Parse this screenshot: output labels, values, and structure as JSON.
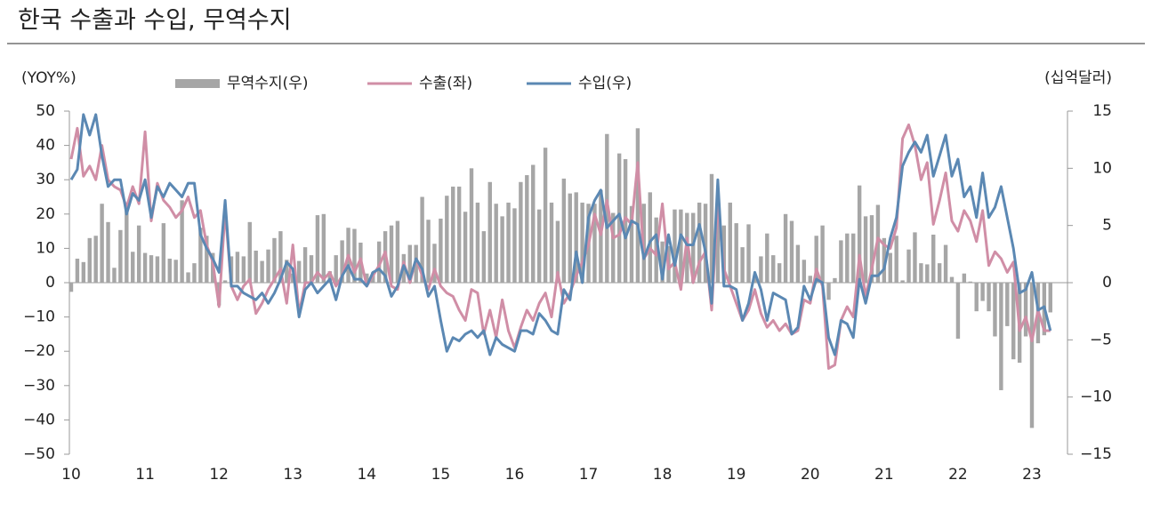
{
  "chart_data": {
    "type": "combo",
    "title": "한국 수출과 수입, 무역수지",
    "ylabel": "(YOY%)",
    "y2label": "(십억달러)",
    "categories": [
      "10",
      null,
      null,
      null,
      null,
      null,
      null,
      null,
      null,
      null,
      null,
      null,
      "11",
      null,
      null,
      null,
      null,
      null,
      null,
      null,
      null,
      null,
      null,
      null,
      "12",
      null,
      null,
      null,
      null,
      null,
      null,
      null,
      null,
      null,
      null,
      null,
      "13",
      null,
      null,
      null,
      null,
      null,
      null,
      null,
      null,
      null,
      null,
      null,
      "14",
      null,
      null,
      null,
      null,
      null,
      null,
      null,
      null,
      null,
      null,
      null,
      "15",
      null,
      null,
      null,
      null,
      null,
      null,
      null,
      null,
      null,
      null,
      null,
      "16",
      null,
      null,
      null,
      null,
      null,
      null,
      null,
      null,
      null,
      null,
      null,
      "17",
      null,
      null,
      null,
      null,
      null,
      null,
      null,
      null,
      null,
      null,
      null,
      "18",
      null,
      null,
      null,
      null,
      null,
      null,
      null,
      null,
      null,
      null,
      null,
      "19",
      null,
      null,
      null,
      null,
      null,
      null,
      null,
      null,
      null,
      null,
      null,
      "20",
      null,
      null,
      null,
      null,
      null,
      null,
      null,
      null,
      null,
      null,
      null,
      "21",
      null,
      null,
      null,
      null,
      null,
      null,
      null,
      null,
      null,
      null,
      null,
      "22",
      null,
      null,
      null,
      null,
      null,
      null,
      null,
      null,
      null,
      null,
      null,
      "23",
      null,
      null,
      null
    ],
    "series": [
      {
        "name": "무역수지(우)",
        "type": "bar",
        "axis": "y2",
        "color": "#a6a6a6",
        "values": [
          -0.8,
          2.1,
          1.8,
          3.9,
          4.1,
          6.9,
          5.3,
          1.3,
          4.6,
          6.4,
          2.7,
          5.0,
          2.6,
          2.4,
          2.3,
          5.2,
          2.1,
          2.0,
          7.2,
          0.9,
          1.7,
          4.8,
          4.1,
          2.6,
          -2.0,
          0.2,
          2.3,
          2.7,
          2.3,
          5.3,
          2.8,
          1.9,
          2.9,
          3.9,
          4.5,
          2.0,
          0.8,
          1.9,
          3.1,
          2.4,
          5.9,
          6.0,
          1.0,
          2.4,
          3.7,
          4.8,
          4.7,
          3.5,
          0.8,
          0.9,
          3.6,
          4.5,
          5.0,
          5.4,
          2.5,
          3.3,
          3.3,
          7.5,
          5.5,
          3.4,
          5.6,
          7.6,
          8.4,
          8.4,
          6.2,
          10.0,
          7.0,
          4.5,
          8.8,
          6.9,
          5.8,
          7.0,
          6.5,
          8.8,
          9.4,
          10.3,
          6.4,
          11.8,
          7.0,
          5.4,
          9.1,
          7.8,
          7.9,
          7.0,
          6.9,
          6.9,
          8.1,
          13.0,
          6.1,
          11.3,
          10.8,
          6.7,
          13.5,
          6.9,
          7.9,
          5.7,
          3.6,
          3.2,
          6.4,
          6.4,
          6.1,
          6.1,
          7.0,
          6.9,
          9.5,
          6.7,
          5.0,
          7.0,
          5.2,
          3.1,
          5.1,
          0.6,
          2.3,
          4.3,
          2.4,
          1.7,
          6.0,
          5.4,
          3.3,
          2.0,
          0.6,
          4.1,
          5.0,
          -1.5,
          0.4,
          3.7,
          4.3,
          4.3,
          8.5,
          5.8,
          5.9,
          6.8,
          3.9,
          2.6,
          4.1,
          0.2,
          2.9,
          4.4,
          1.7,
          1.6,
          4.2,
          1.7,
          3.3,
          0.5,
          -4.9,
          0.8,
          0.1,
          -2.5,
          -1.6,
          -2.5,
          -4.7,
          -9.4,
          -3.8,
          -6.7,
          -7.0,
          -4.7,
          -12.7,
          -5.3,
          -4.6,
          -2.6
        ]
      },
      {
        "name": "수출(좌)",
        "type": "line",
        "color": "#d08ea6",
        "values": [
          36,
          45,
          31,
          34,
          30,
          40,
          30,
          28,
          27,
          22,
          28,
          23,
          44,
          18,
          29,
          24,
          22,
          19,
          21,
          25,
          19,
          21,
          11,
          6,
          -7,
          21,
          -1,
          -5,
          -1,
          1,
          -9,
          -6,
          -2,
          1,
          4,
          -6,
          11,
          -9,
          0,
          0,
          3,
          1,
          3,
          -1,
          2,
          8,
          3,
          7,
          -1,
          2,
          5,
          9,
          -1,
          -2,
          6,
          0,
          7,
          2,
          -2,
          4,
          -1,
          -3,
          -4,
          -8,
          -11,
          -2,
          -3,
          -15,
          -8,
          -16,
          -5,
          -14,
          -19,
          -13,
          -8,
          -11,
          -6,
          -3,
          -10,
          3,
          -6,
          -3,
          2,
          6,
          11,
          20,
          14,
          24,
          13,
          14,
          19,
          17,
          35,
          7,
          10,
          8,
          23,
          4,
          6,
          -2,
          13,
          0,
          6,
          9,
          -8,
          23,
          4,
          -1,
          -6,
          -11,
          -8,
          -2,
          -9,
          -13,
          -11,
          -14,
          -12,
          -15,
          -14,
          -5,
          -6,
          4,
          -1,
          -25,
          -24,
          -11,
          -7,
          -10,
          8,
          -4,
          4,
          13,
          11,
          10,
          16,
          42,
          46,
          40,
          30,
          35,
          17,
          24,
          32,
          18,
          15,
          21,
          18,
          12,
          21,
          5,
          9,
          7,
          3,
          6,
          -14,
          -10,
          -17,
          -8,
          -14,
          -14
        ]
      },
      {
        "name": "수입(우)",
        "type": "line",
        "color": "#5b88b3",
        "values": [
          30,
          33,
          49,
          43,
          49,
          37,
          28,
          30,
          30,
          20,
          26,
          24,
          30,
          19,
          28,
          25,
          29,
          27,
          25,
          29,
          29,
          14,
          10,
          7,
          3,
          24,
          -1,
          -1,
          -3,
          -4,
          -5,
          -3,
          -6,
          -3,
          1,
          6,
          4,
          -10,
          -2,
          0,
          -3,
          -1,
          1,
          -5,
          2,
          5,
          1,
          1,
          -1,
          3,
          4,
          2,
          -4,
          -1,
          5,
          1,
          7,
          4,
          -4,
          -1,
          -11,
          -20,
          -16,
          -17,
          -15,
          -14,
          -16,
          -14,
          -21,
          -16,
          -18,
          -19,
          -20,
          -14,
          -14,
          -15,
          -9,
          -11,
          -14,
          -15,
          -2,
          -5,
          9,
          0,
          19,
          24,
          27,
          16,
          18,
          20,
          13,
          18,
          17,
          7,
          12,
          14,
          1,
          14,
          5,
          14,
          11,
          11,
          17,
          9,
          -6,
          30,
          -1,
          -1,
          -2,
          -11,
          -6,
          3,
          -2,
          -11,
          -3,
          -4,
          -5,
          -15,
          -13,
          -1,
          -5,
          1,
          0,
          -16,
          -21,
          -11,
          -12,
          -16,
          1,
          -6,
          2,
          2,
          4,
          13,
          19,
          34,
          38,
          41,
          38,
          43,
          31,
          37,
          43,
          31,
          36,
          25,
          28,
          19,
          32,
          19,
          22,
          28,
          19,
          10,
          -3,
          -2,
          3,
          -8,
          -7,
          -14
        ]
      }
    ],
    "ylim": [
      -50,
      50
    ],
    "yticks": [
      {
        "value": -50,
        "label": "−50"
      },
      {
        "value": -40,
        "label": "−40"
      },
      {
        "value": -30,
        "label": "−30"
      },
      {
        "value": -20,
        "label": "−20"
      },
      {
        "value": -10,
        "label": "−10"
      },
      0,
      10,
      20,
      30,
      40,
      50
    ],
    "y2lim": [
      -15,
      15
    ],
    "y2ticks": [
      {
        "value": -15,
        "label": "−15"
      },
      {
        "value": -10,
        "label": "−10"
      },
      {
        "value": -5,
        "label": "−5"
      },
      0,
      5,
      10,
      15
    ]
  }
}
